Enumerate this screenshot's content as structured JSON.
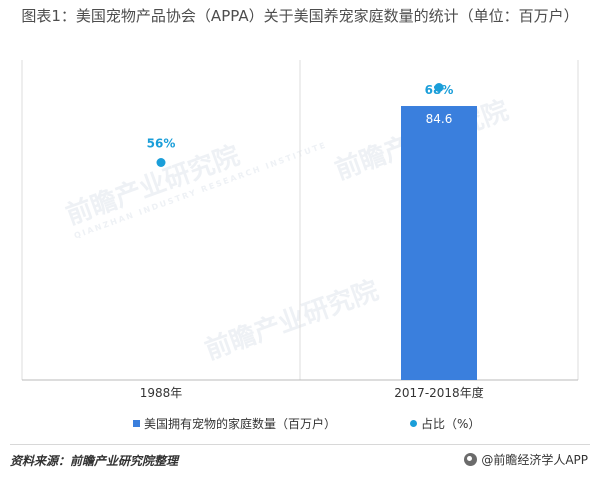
{
  "title": "图表1：美国宠物产品协会（APPA）关于美国养宠家庭数量的统计（单位：百万户）",
  "chart_data": {
    "type": "bar",
    "categories": [
      "1988年",
      "2017-2018年度"
    ],
    "series": [
      {
        "name": "美国拥有宠物的家庭数量（百万户）",
        "kind": "bar",
        "values": [
          null,
          84.6
        ],
        "labels": [
          "",
          "84.6"
        ]
      },
      {
        "name": "占比（%）",
        "kind": "scatter",
        "values": [
          56,
          68
        ],
        "labels": [
          "56%",
          "68%"
        ]
      }
    ],
    "xlabel": "",
    "ylabel": "",
    "colors": {
      "bar": "#3a7fdd",
      "dot": "#1a9ed9",
      "grid": "#dddddd",
      "text": "#333333"
    },
    "grid": true,
    "legend_position": "bottom"
  },
  "legend": {
    "bar_label": "美国拥有宠物的家庭数量（百万户）",
    "dot_label": "占比（%）"
  },
  "watermark": {
    "brand": "前瞻产业研究院",
    "sub": "QIANZHAN INDUSTRY RESEARCH INSTITUTE"
  },
  "footer": {
    "source": "资料来源：前瞻产业研究院整理",
    "brand": "@前瞻经济学人APP",
    "brand_icon": "qianzhan-logo-icon"
  }
}
